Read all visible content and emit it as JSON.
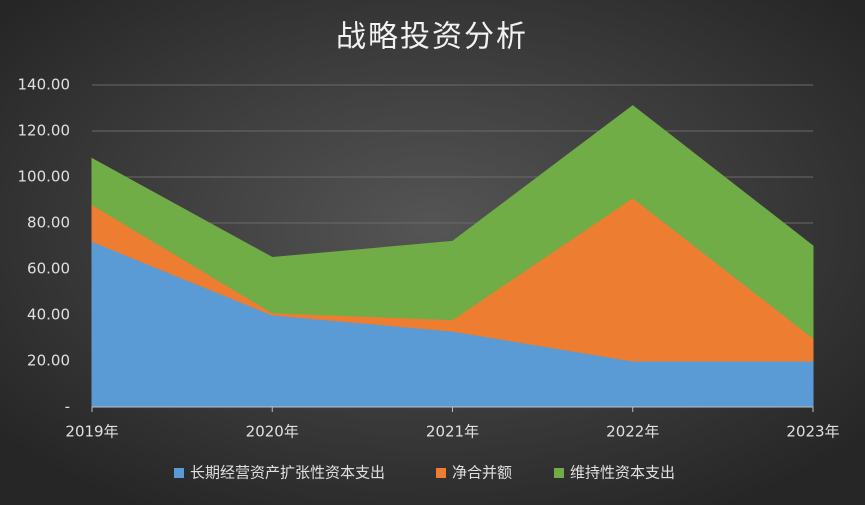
{
  "chart_data": {
    "type": "stacked_area",
    "title": "战略投资分析",
    "categories": [
      "2019年",
      "2020年",
      "2021年",
      "2022年",
      "2023年"
    ],
    "series": [
      {
        "name": "长期经营资产扩张性资本支出",
        "color": "#5b9bd5",
        "values": [
          72,
          40,
          33,
          20,
          20
        ]
      },
      {
        "name": "净合并额",
        "color": "#ed7d31",
        "values": [
          16,
          1,
          5,
          71,
          10
        ]
      },
      {
        "name": "维持性资本支出",
        "color": "#70ad47",
        "values": [
          20,
          24,
          34,
          40,
          40
        ]
      }
    ],
    "ylim": [
      0,
      140
    ],
    "yticks": [
      {
        "value": 0,
        "label": "-"
      },
      {
        "value": 20,
        "label": "20.00"
      },
      {
        "value": 40,
        "label": "40.00"
      },
      {
        "value": 60,
        "label": "60.00"
      },
      {
        "value": 80,
        "label": "80.00"
      },
      {
        "value": 100,
        "label": "100.00"
      },
      {
        "value": 120,
        "label": "120.00"
      },
      {
        "value": 140,
        "label": "140.00"
      }
    ],
    "grid": true,
    "legend": "bottom"
  }
}
